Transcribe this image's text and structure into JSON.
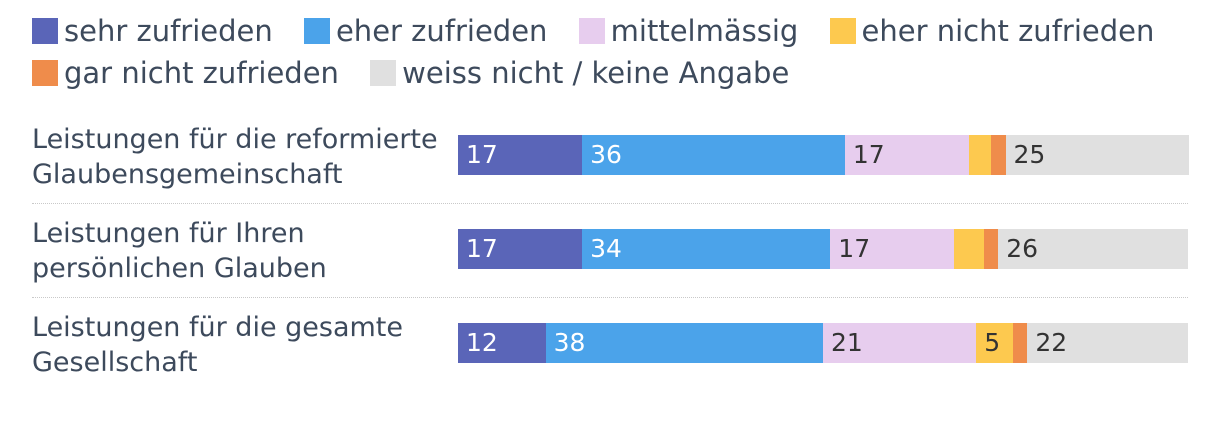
{
  "chart_data": {
    "type": "bar",
    "orientation": "horizontal",
    "stacked": true,
    "percent_scale": 100,
    "series": [
      {
        "name": "sehr zufrieden",
        "color": "#5a65b8",
        "label_color": "#ffffff",
        "values": [
          17,
          17,
          12
        ]
      },
      {
        "name": "eher zufrieden",
        "color": "#4ba3ea",
        "label_color": "#ffffff",
        "values": [
          36,
          34,
          38
        ]
      },
      {
        "name": "mittelmässig",
        "color": "#e7cdee",
        "label_color": "#333333",
        "values": [
          17,
          17,
          21
        ]
      },
      {
        "name": "eher nicht zufrieden",
        "color": "#fdc94f",
        "label_color": "#333333",
        "values": [
          3,
          4,
          5
        ]
      },
      {
        "name": "gar nicht zufrieden",
        "color": "#ef8c4b",
        "label_color": "#333333",
        "values": [
          2,
          2,
          2
        ]
      },
      {
        "name": "weiss nicht / keine Angabe",
        "color": "#e0e0e0",
        "label_color": "#333333",
        "values": [
          25,
          26,
          22
        ]
      }
    ],
    "categories": [
      "Leistungen für die reformierte Glaubensgemeinschaft",
      "Leistungen für Ihren persönlichen Glauben",
      "Leistungen für die gesamte Gesellschaft"
    ],
    "data_labels": [
      [
        "17",
        "36",
        "17",
        "",
        "",
        "25"
      ],
      [
        "17",
        "34",
        "17",
        "",
        "",
        "26"
      ],
      [
        "12",
        "38",
        "21",
        "5",
        "",
        "22"
      ]
    ],
    "legend_position": "top"
  }
}
